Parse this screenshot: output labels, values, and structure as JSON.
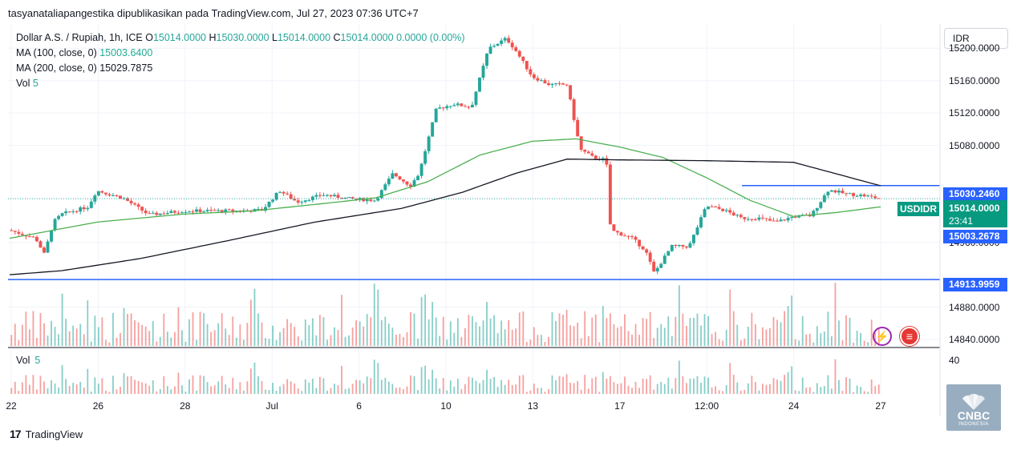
{
  "header": {
    "attribution": "tasyanataliapangestika dipublikasikan pada TradingView.com, Jul 27, 2023 07:36 UTC+7"
  },
  "legend": {
    "symbol": "Dollar A.S. / Rupiah, 1h, ICE",
    "open_label": "O",
    "open": "15014.0000",
    "high_label": "H",
    "high": "15030.0000",
    "low_label": "L",
    "low": "15014.0000",
    "close_label": "C",
    "close": "15014.0000",
    "change": "0.0000 (0.00%)",
    "ma100_label": "MA (100, close, 0)",
    "ma100_value": "15003.6400",
    "ma200_label": "MA (200, close, 0)",
    "ma200_value": "15029.7875",
    "vol_label": "Vol",
    "vol_value": "5"
  },
  "volume_pane": {
    "label": "Vol",
    "value": "5",
    "axis_tick": "40"
  },
  "currency_button": "IDR",
  "badges": {
    "ma200": "15030.2460",
    "current_symbol": "USDIDR",
    "current_price": "15014.0000",
    "countdown": "23:41",
    "ma100": "15003.2678",
    "support": "14913.9959"
  },
  "footer": {
    "brand": "TradingView"
  },
  "watermark": {
    "name": "CNBC",
    "sub": "INDONESIA"
  },
  "colors": {
    "up": "#26a69a",
    "down": "#ef5350",
    "ma100": "#4caf50",
    "ma200": "#131722",
    "hline": "#2962ff"
  },
  "chart_data": {
    "type": "candlestick",
    "title": "Dollar A.S. / Rupiah, 1h, ICE",
    "ylim": [
      14830,
      15230
    ],
    "y_ticks": [
      "15200.0000",
      "15160.0000",
      "15120.0000",
      "15080.0000",
      "14960.0000",
      "14880.0000",
      "14840.0000"
    ],
    "x_ticks": [
      "22",
      "26",
      "28",
      "Jul",
      "6",
      "10",
      "13",
      "17",
      "12:00",
      "24",
      "27"
    ],
    "horizontal_lines": [
      14913.9959,
      15030.246
    ],
    "price_path": [
      [
        0,
        14975
      ],
      [
        0.03,
        14965
      ],
      [
        0.04,
        14945
      ],
      [
        0.05,
        14985
      ],
      [
        0.06,
        14995
      ],
      [
        0.09,
        15004
      ],
      [
        0.1,
        15024
      ],
      [
        0.13,
        15015
      ],
      [
        0.16,
        14994
      ],
      [
        0.2,
        14999
      ],
      [
        0.26,
        14999
      ],
      [
        0.29,
        15000
      ],
      [
        0.31,
        15024
      ],
      [
        0.33,
        15010
      ],
      [
        0.36,
        15019
      ],
      [
        0.39,
        15014
      ],
      [
        0.42,
        15012
      ],
      [
        0.44,
        15045
      ],
      [
        0.46,
        15030
      ],
      [
        0.47,
        15045
      ],
      [
        0.49,
        15125
      ],
      [
        0.51,
        15131
      ],
      [
        0.53,
        15127
      ],
      [
        0.55,
        15200
      ],
      [
        0.57,
        15212
      ],
      [
        0.58,
        15199
      ],
      [
        0.6,
        15165
      ],
      [
        0.62,
        15155
      ],
      [
        0.64,
        15155
      ],
      [
        0.655,
        15075
      ],
      [
        0.67,
        15065
      ],
      [
        0.685,
        15062
      ],
      [
        0.69,
        14975
      ],
      [
        0.715,
        14965
      ],
      [
        0.73,
        14950
      ],
      [
        0.74,
        14922
      ],
      [
        0.76,
        14955
      ],
      [
        0.78,
        14955
      ],
      [
        0.8,
        15005
      ],
      [
        0.82,
        15000
      ],
      [
        0.84,
        14990
      ],
      [
        0.86,
        14990
      ],
      [
        0.88,
        14985
      ],
      [
        0.9,
        14992
      ],
      [
        0.92,
        14993
      ],
      [
        0.94,
        15025
      ],
      [
        0.96,
        15020
      ],
      [
        0.98,
        15018
      ],
      [
        1.0,
        15014
      ]
    ],
    "ma100_path": [
      [
        0,
        14965
      ],
      [
        0.1,
        14985
      ],
      [
        0.2,
        14995
      ],
      [
        0.28,
        14999
      ],
      [
        0.36,
        15008
      ],
      [
        0.42,
        15015
      ],
      [
        0.48,
        15035
      ],
      [
        0.54,
        15068
      ],
      [
        0.6,
        15085
      ],
      [
        0.65,
        15088
      ],
      [
        0.7,
        15078
      ],
      [
        0.75,
        15065
      ],
      [
        0.8,
        15040
      ],
      [
        0.85,
        15012
      ],
      [
        0.9,
        14992
      ],
      [
        0.95,
        14997
      ],
      [
        1.0,
        15004
      ]
    ],
    "ma200_path": [
      [
        0,
        14920
      ],
      [
        0.06,
        14925
      ],
      [
        0.15,
        14940
      ],
      [
        0.25,
        14962
      ],
      [
        0.35,
        14985
      ],
      [
        0.45,
        15002
      ],
      [
        0.52,
        15022
      ],
      [
        0.58,
        15045
      ],
      [
        0.64,
        15063
      ],
      [
        0.7,
        15062
      ],
      [
        0.8,
        15061
      ],
      [
        0.9,
        15059
      ],
      [
        1.0,
        15030
      ]
    ]
  }
}
